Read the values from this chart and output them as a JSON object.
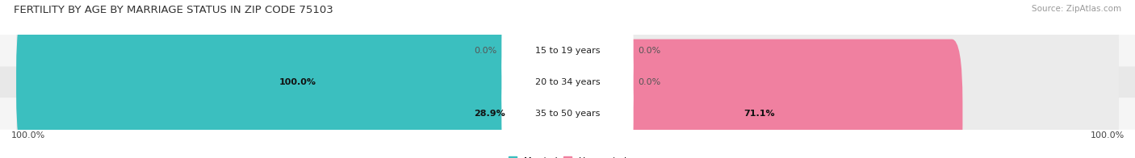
{
  "title": "FERTILITY BY AGE BY MARRIAGE STATUS IN ZIP CODE 75103",
  "source": "Source: ZipAtlas.com",
  "rows": [
    {
      "label": "15 to 19 years",
      "married": 0.0,
      "unmarried": 0.0
    },
    {
      "label": "20 to 34 years",
      "married": 100.0,
      "unmarried": 0.0
    },
    {
      "label": "35 to 50 years",
      "married": 28.9,
      "unmarried": 71.1
    }
  ],
  "married_color": "#3bbfbf",
  "unmarried_color": "#f080a0",
  "bar_bg_color_light": "#ebebeb",
  "bar_bg_color_dark": "#e0e0e0",
  "row_bg_colors": [
    "#f5f5f5",
    "#e8e8e8",
    "#f5f5f5"
  ],
  "title_fontsize": 9.5,
  "source_fontsize": 7.5,
  "label_fontsize": 8,
  "value_fontsize": 8,
  "tick_fontsize": 8,
  "figsize": [
    14.06,
    1.96
  ],
  "dpi": 100,
  "x_left_label": "100.0%",
  "x_right_label": "100.0%"
}
